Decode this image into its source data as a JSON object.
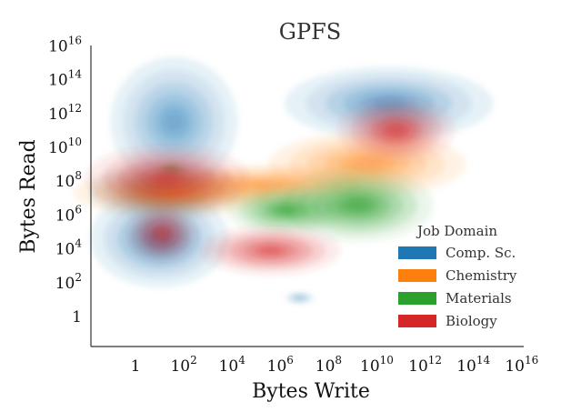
{
  "chart_data": {
    "type": "kde-density",
    "title": "GPFS",
    "xlabel": "Bytes Write",
    "ylabel": "Bytes Read",
    "x_scale": "log10",
    "y_scale": "log10",
    "xlim": [
      "10^-2",
      "10^16"
    ],
    "ylim": [
      "10^-2",
      "10^16"
    ],
    "x_ticks": [
      {
        "base": "1",
        "exp": ""
      },
      {
        "base": "10",
        "exp": "2"
      },
      {
        "base": "10",
        "exp": "4"
      },
      {
        "base": "10",
        "exp": "6"
      },
      {
        "base": "10",
        "exp": "8"
      },
      {
        "base": "10",
        "exp": "10"
      },
      {
        "base": "10",
        "exp": "12"
      },
      {
        "base": "10",
        "exp": "14"
      },
      {
        "base": "10",
        "exp": "16"
      }
    ],
    "y_ticks": [
      {
        "base": "1",
        "exp": ""
      },
      {
        "base": "10",
        "exp": "2"
      },
      {
        "base": "10",
        "exp": "4"
      },
      {
        "base": "10",
        "exp": "6"
      },
      {
        "base": "10",
        "exp": "8"
      },
      {
        "base": "10",
        "exp": "10"
      },
      {
        "base": "10",
        "exp": "12"
      },
      {
        "base": "10",
        "exp": "14"
      },
      {
        "base": "10",
        "exp": "16"
      }
    ],
    "grid": false,
    "legend": {
      "title": "Job Domain",
      "placement": "lower-right"
    },
    "series": [
      {
        "name": "Comp. Sc.",
        "color": "#1f77b4",
        "modes": [
          {
            "log_write": 1.2,
            "log_read": 7.4,
            "log_sd_write": 1.3,
            "log_sd_read": 0.7,
            "weight": 1.0
          },
          {
            "log_write": 1.0,
            "log_read": 4.6,
            "log_sd_write": 1.2,
            "log_sd_read": 1.2,
            "weight": 0.75
          },
          {
            "log_write": 1.6,
            "log_read": 11.5,
            "log_sd_write": 1.1,
            "log_sd_read": 1.6,
            "weight": 0.35
          },
          {
            "log_write": 10.5,
            "log_read": 12.6,
            "log_sd_write": 1.8,
            "log_sd_read": 0.9,
            "weight": 0.45
          },
          {
            "log_write": 6.8,
            "log_read": 1.1,
            "log_sd_write": 0.25,
            "log_sd_read": 0.12,
            "weight": 0.25
          }
        ]
      },
      {
        "name": "Chemistry",
        "color": "#ff7f0e",
        "modes": [
          {
            "log_write": 1.5,
            "log_read": 7.3,
            "log_sd_write": 1.7,
            "log_sd_read": 0.6,
            "weight": 0.85
          },
          {
            "log_write": 5.5,
            "log_read": 7.8,
            "log_sd_write": 1.6,
            "log_sd_read": 0.5,
            "weight": 0.4
          },
          {
            "log_write": 9.6,
            "log_read": 9.0,
            "log_sd_write": 1.7,
            "log_sd_read": 0.8,
            "weight": 0.5
          }
        ]
      },
      {
        "name": "Materials",
        "color": "#2ca02c",
        "modes": [
          {
            "log_write": 6.2,
            "log_read": 6.3,
            "log_sd_write": 1.0,
            "log_sd_read": 0.6,
            "weight": 0.9
          },
          {
            "log_write": 9.2,
            "log_read": 6.6,
            "log_sd_write": 1.3,
            "log_sd_read": 0.9,
            "weight": 1.0
          },
          {
            "log_write": 1.5,
            "log_read": 8.7,
            "log_sd_write": 0.25,
            "log_sd_read": 0.15,
            "weight": 0.6
          }
        ]
      },
      {
        "name": "Biology",
        "color": "#d62728",
        "modes": [
          {
            "log_write": 1.3,
            "log_read": 8.2,
            "log_sd_write": 1.4,
            "log_sd_read": 0.8,
            "weight": 0.6
          },
          {
            "log_write": 1.1,
            "log_read": 4.9,
            "log_sd_write": 0.6,
            "log_sd_read": 0.7,
            "weight": 0.55
          },
          {
            "log_write": 5.6,
            "log_read": 3.9,
            "log_sd_write": 1.2,
            "log_sd_read": 0.6,
            "weight": 0.6
          },
          {
            "log_write": 10.8,
            "log_read": 11.0,
            "log_sd_write": 1.0,
            "log_sd_read": 0.8,
            "weight": 0.85
          }
        ]
      }
    ]
  }
}
